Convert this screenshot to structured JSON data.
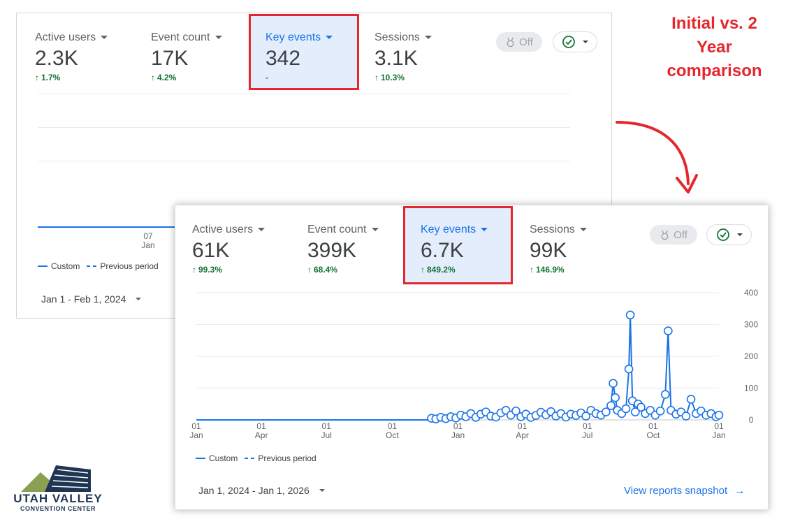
{
  "callout": {
    "lines": [
      "Initial vs. 2",
      "Year",
      "comparison"
    ],
    "color": "#e5272d"
  },
  "initial_card": {
    "metrics": [
      {
        "label": "Active users",
        "value": "2.3K",
        "delta": "1.7%"
      },
      {
        "label": "Event count",
        "value": "17K",
        "delta": "4.2%"
      },
      {
        "label": "Key events",
        "value": "342",
        "delta": "-"
      },
      {
        "label": "Sessions",
        "value": "3.1K",
        "delta": "10.3%"
      }
    ],
    "toggle_label": "Off",
    "x_tick": [
      "07",
      "Jan"
    ],
    "legend": {
      "custom": "Custom",
      "previous": "Previous period"
    },
    "date_range": "Jan 1 - Feb 1, 2024"
  },
  "comparison_card": {
    "metrics": [
      {
        "label": "Active users",
        "value": "61K",
        "delta": "99.3%"
      },
      {
        "label": "Event count",
        "value": "399K",
        "delta": "68.4%"
      },
      {
        "label": "Key events",
        "value": "6.7K",
        "delta": "849.2%"
      },
      {
        "label": "Sessions",
        "value": "99K",
        "delta": "146.9%"
      }
    ],
    "toggle_label": "Off",
    "legend": {
      "custom": "Custom",
      "previous": "Previous period"
    },
    "date_range": "Jan 1, 2024 - Jan 1, 2026",
    "link": "View reports snapshot"
  },
  "colors": {
    "accent": "#1a73e8",
    "positive": "#137333",
    "highlight": "#e5272d",
    "highlight_fill": "#e3edfc"
  },
  "icons": [
    "caret-down-icon",
    "arrow-up-icon",
    "medal-icon",
    "check-circle-icon",
    "arrow-right-icon",
    "curved-arrow-icon"
  ],
  "logo": {
    "line1": "UTAH VALLEY",
    "line2": "CONVENTION CENTER"
  },
  "chart_data": {
    "type": "line",
    "title": "",
    "xlabel": "",
    "ylabel": "",
    "ylim": [
      0,
      400
    ],
    "y_ticks": [
      0,
      100,
      200,
      300,
      400
    ],
    "x_ticks": [
      {
        "x": "2024-01-01",
        "label": [
          "01",
          "Jan"
        ]
      },
      {
        "x": "2024-04-01",
        "label": [
          "01",
          "Apr"
        ]
      },
      {
        "x": "2024-07-01",
        "label": [
          "01",
          "Jul"
        ]
      },
      {
        "x": "2024-10-01",
        "label": [
          "01",
          "Oct"
        ]
      },
      {
        "x": "2025-01-01",
        "label": [
          "01",
          "Jan"
        ]
      },
      {
        "x": "2025-04-01",
        "label": [
          "01",
          "Apr"
        ]
      },
      {
        "x": "2025-07-01",
        "label": [
          "01",
          "Jul"
        ]
      },
      {
        "x": "2025-10-01",
        "label": [
          "01",
          "Oct"
        ]
      },
      {
        "x": "2026-01-01",
        "label": [
          "01",
          "Jan"
        ]
      }
    ],
    "grid": true,
    "legend_position": "bottom-left",
    "series": [
      {
        "name": "Custom",
        "points": [
          {
            "x": "2024-01-01",
            "y": 0
          },
          {
            "x": "2024-11-20",
            "y": 0
          },
          {
            "x": "2024-11-25",
            "y": 5
          },
          {
            "x": "2024-12-01",
            "y": 3
          },
          {
            "x": "2024-12-08",
            "y": 8
          },
          {
            "x": "2024-12-15",
            "y": 4
          },
          {
            "x": "2024-12-22",
            "y": 10
          },
          {
            "x": "2024-12-29",
            "y": 6
          },
          {
            "x": "2025-01-05",
            "y": 15
          },
          {
            "x": "2025-01-12",
            "y": 10
          },
          {
            "x": "2025-01-19",
            "y": 20
          },
          {
            "x": "2025-01-26",
            "y": 8
          },
          {
            "x": "2025-02-02",
            "y": 18
          },
          {
            "x": "2025-02-09",
            "y": 25
          },
          {
            "x": "2025-02-16",
            "y": 12
          },
          {
            "x": "2025-02-23",
            "y": 9
          },
          {
            "x": "2025-03-02",
            "y": 22
          },
          {
            "x": "2025-03-09",
            "y": 30
          },
          {
            "x": "2025-03-16",
            "y": 15
          },
          {
            "x": "2025-03-23",
            "y": 28
          },
          {
            "x": "2025-03-30",
            "y": 10
          },
          {
            "x": "2025-04-06",
            "y": 18
          },
          {
            "x": "2025-04-13",
            "y": 8
          },
          {
            "x": "2025-04-20",
            "y": 14
          },
          {
            "x": "2025-04-27",
            "y": 24
          },
          {
            "x": "2025-05-04",
            "y": 16
          },
          {
            "x": "2025-05-11",
            "y": 26
          },
          {
            "x": "2025-05-18",
            "y": 12
          },
          {
            "x": "2025-05-25",
            "y": 20
          },
          {
            "x": "2025-06-01",
            "y": 9
          },
          {
            "x": "2025-06-08",
            "y": 18
          },
          {
            "x": "2025-06-15",
            "y": 14
          },
          {
            "x": "2025-06-22",
            "y": 22
          },
          {
            "x": "2025-06-29",
            "y": 12
          },
          {
            "x": "2025-07-06",
            "y": 30
          },
          {
            "x": "2025-07-13",
            "y": 20
          },
          {
            "x": "2025-07-20",
            "y": 15
          },
          {
            "x": "2025-07-27",
            "y": 25
          },
          {
            "x": "2025-08-03",
            "y": 45
          },
          {
            "x": "2025-08-06",
            "y": 115
          },
          {
            "x": "2025-08-09",
            "y": 70
          },
          {
            "x": "2025-08-12",
            "y": 30
          },
          {
            "x": "2025-08-18",
            "y": 20
          },
          {
            "x": "2025-08-24",
            "y": 35
          },
          {
            "x": "2025-08-28",
            "y": 160
          },
          {
            "x": "2025-08-30",
            "y": 330
          },
          {
            "x": "2025-09-02",
            "y": 60
          },
          {
            "x": "2025-09-06",
            "y": 25
          },
          {
            "x": "2025-09-10",
            "y": 50
          },
          {
            "x": "2025-09-14",
            "y": 40
          },
          {
            "x": "2025-09-20",
            "y": 20
          },
          {
            "x": "2025-09-27",
            "y": 30
          },
          {
            "x": "2025-10-04",
            "y": 15
          },
          {
            "x": "2025-10-11",
            "y": 28
          },
          {
            "x": "2025-10-18",
            "y": 80
          },
          {
            "x": "2025-10-22",
            "y": 280
          },
          {
            "x": "2025-10-26",
            "y": 30
          },
          {
            "x": "2025-11-02",
            "y": 18
          },
          {
            "x": "2025-11-09",
            "y": 25
          },
          {
            "x": "2025-11-16",
            "y": 12
          },
          {
            "x": "2025-11-23",
            "y": 65
          },
          {
            "x": "2025-11-30",
            "y": 20
          },
          {
            "x": "2025-12-07",
            "y": 28
          },
          {
            "x": "2025-12-14",
            "y": 15
          },
          {
            "x": "2025-12-21",
            "y": 20
          },
          {
            "x": "2025-12-28",
            "y": 10
          },
          {
            "x": "2026-01-01",
            "y": 15
          }
        ]
      }
    ]
  }
}
